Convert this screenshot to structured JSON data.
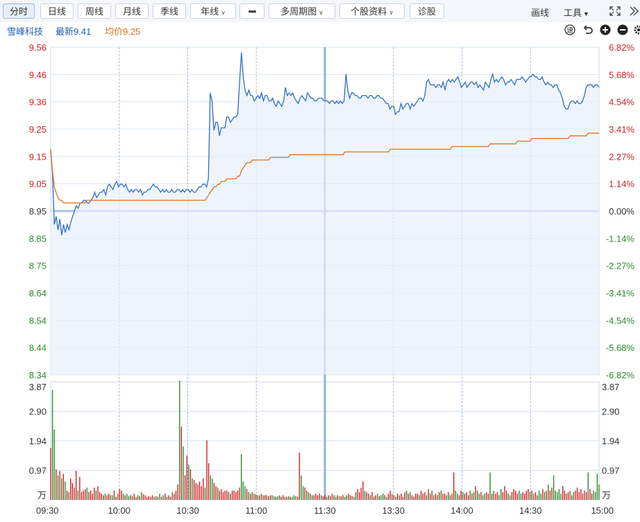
{
  "toolbar": {
    "buttons": [
      {
        "label": "分时",
        "active": true
      },
      {
        "label": "日线"
      },
      {
        "label": "周线"
      },
      {
        "label": "月线"
      },
      {
        "label": "季线"
      },
      {
        "label": "年线",
        "dropdown": true
      },
      {
        "label": "•••"
      },
      {
        "label": "多周期图",
        "dropdown": true
      },
      {
        "label": "个股资料",
        "dropdown": true
      },
      {
        "label": "诊股"
      }
    ],
    "draw_label": "画线",
    "tools_label": "工具",
    "expand_icon": "expand-icon",
    "collapse_icon": "double-chevron-icon"
  },
  "info": {
    "stock_name": "雪峰科技",
    "latest": "最新9.41",
    "avg": "均价9.25",
    "controls": [
      "speed-icon",
      "undo-icon",
      "zoom-in-icon",
      "zoom-out-icon",
      "settings-icon"
    ]
  },
  "colors": {
    "price": "#2f6fc6",
    "avg": "#e0701b",
    "up": "#d02020",
    "down": "#2a8a2a",
    "grid": "#b5cdee",
    "fill": "#e8f0fb"
  },
  "chart_data": {
    "type": "line",
    "price_axis": {
      "ticks": [
        "9.56",
        "9.46",
        "9.36",
        "9.25",
        "9.15",
        "9.05",
        "8.95",
        "8.85",
        "8.75",
        "8.64",
        "8.54",
        "8.44",
        "8.34"
      ],
      "pct_ticks": [
        "6.82%",
        "5.68%",
        "4.54%",
        "3.41%",
        "2.27%",
        "1.14%",
        "0.00%",
        "-1.14%",
        "-2.27%",
        "-3.41%",
        "-4.54%",
        "-5.68%",
        "-6.82%"
      ],
      "ylim": [
        8.34,
        9.56
      ],
      "prev_close": 8.95
    },
    "volume_axis": {
      "ticks": [
        "3.87",
        "2.90",
        "1.94",
        "0.97",
        "万"
      ],
      "ylim": [
        0,
        3.87
      ]
    },
    "x_ticks": [
      "09:30",
      "10:00",
      "10:30",
      "11:00",
      "11:30",
      "13:30",
      "14:00",
      "14:30",
      "15:00"
    ],
    "price": [
      9.18,
      9.09,
      8.9,
      8.93,
      8.88,
      8.92,
      8.86,
      8.9,
      8.87,
      8.9,
      8.88,
      8.91,
      8.93,
      8.95,
      8.97,
      8.96,
      8.98,
      8.98,
      8.99,
      8.99,
      8.98,
      8.98,
      8.99,
      9.0,
      9.02,
      9.0,
      9.01,
      9.02,
      9.02,
      9.03,
      9.01,
      9.04,
      9.05,
      9.04,
      9.03,
      9.05,
      9.06,
      9.04,
      9.05,
      9.05,
      9.04,
      9.05,
      9.03,
      9.02,
      9.03,
      9.02,
      9.03,
      9.03,
      9.02,
      9.03,
      9.01,
      9.02,
      9.02,
      9.03,
      9.03,
      9.04,
      9.05,
      9.04,
      9.04,
      9.03,
      9.02,
      9.03,
      9.02,
      9.03,
      9.02,
      9.02,
      9.03,
      9.02,
      9.02,
      9.03,
      9.03,
      9.02,
      9.03,
      9.02,
      9.03,
      9.03,
      9.02,
      9.03,
      9.02,
      9.02,
      9.03,
      9.04,
      9.04,
      9.05,
      9.05,
      9.04,
      9.07,
      9.39,
      9.36,
      9.25,
      9.28,
      9.28,
      9.23,
      9.26,
      9.26,
      9.26,
      9.3,
      9.3,
      9.28,
      9.29,
      9.3,
      9.3,
      9.31,
      9.43,
      9.54,
      9.45,
      9.4,
      9.38,
      9.4,
      9.38,
      9.38,
      9.36,
      9.37,
      9.38,
      9.37,
      9.39,
      9.36,
      9.38,
      9.38,
      9.36,
      9.36,
      9.37,
      9.35,
      9.34,
      9.36,
      9.35,
      9.34,
      9.36,
      9.41,
      9.38,
      9.39,
      9.38,
      9.39,
      9.37,
      9.36,
      9.35,
      9.37,
      9.38,
      9.37,
      9.36,
      9.39,
      9.38,
      9.37,
      9.37,
      9.36,
      9.36,
      9.37,
      9.37,
      9.37,
      9.36,
      9.36,
      9.36,
      9.35,
      9.36,
      9.36,
      9.35,
      9.36,
      9.35,
      9.36,
      9.35,
      9.36,
      9.46,
      9.4,
      9.37,
      9.39,
      9.39,
      9.38,
      9.38,
      9.37,
      9.37,
      9.38,
      9.38,
      9.38,
      9.37,
      9.38,
      9.38,
      9.37,
      9.37,
      9.38,
      9.38,
      9.37,
      9.37,
      9.36,
      9.35,
      9.35,
      9.33,
      9.34,
      9.34,
      9.31,
      9.32,
      9.32,
      9.35,
      9.33,
      9.34,
      9.35,
      9.35,
      9.33,
      9.35,
      9.34,
      9.35,
      9.36,
      9.37,
      9.37,
      9.36,
      9.38,
      9.43,
      9.44,
      9.42,
      9.42,
      9.42,
      9.41,
      9.42,
      9.42,
      9.41,
      9.43,
      9.4,
      9.43,
      9.44,
      9.43,
      9.44,
      9.43,
      9.44,
      9.45,
      9.43,
      9.41,
      9.42,
      9.43,
      9.41,
      9.42,
      9.43,
      9.43,
      9.42,
      9.43,
      9.41,
      9.42,
      9.41,
      9.4,
      9.43,
      9.42,
      9.41,
      9.44,
      9.46,
      9.43,
      9.44,
      9.43,
      9.44,
      9.45,
      9.44,
      9.42,
      9.43,
      9.43,
      9.44,
      9.43,
      9.42,
      9.44,
      9.44,
      9.44,
      9.45,
      9.44,
      9.43,
      9.44,
      9.45,
      9.45,
      9.46,
      9.45,
      9.45,
      9.44,
      9.44,
      9.45,
      9.43,
      9.42,
      9.43,
      9.42,
      9.42,
      9.41,
      9.42,
      9.42,
      9.4,
      9.39,
      9.37,
      9.34,
      9.33,
      9.33,
      9.35,
      9.36,
      9.36,
      9.35,
      9.36,
      9.35,
      9.35,
      9.36,
      9.38,
      9.41,
      9.42,
      9.42,
      9.42,
      9.41,
      9.42,
      9.42,
      9.41
    ],
    "avg_price": [
      9.18,
      9.1,
      9.04,
      9.02,
      9.0,
      8.99,
      8.99,
      8.98,
      8.98,
      8.98,
      8.98,
      8.98,
      8.98,
      8.98,
      8.98,
      8.98,
      8.98,
      8.98,
      8.98,
      8.98,
      8.99,
      8.99,
      8.99,
      8.99,
      8.99,
      8.99,
      8.99,
      8.99,
      8.99,
      8.99,
      8.99,
      8.99,
      8.99,
      8.99,
      8.99,
      8.99,
      8.99,
      8.99,
      8.99,
      8.99,
      8.99,
      8.99,
      8.99,
      8.99,
      8.99,
      8.99,
      8.99,
      8.99,
      8.99,
      8.99,
      8.99,
      8.99,
      8.99,
      8.99,
      8.99,
      8.99,
      8.99,
      8.99,
      8.99,
      8.99,
      8.99,
      8.99,
      8.99,
      8.99,
      8.99,
      8.99,
      8.99,
      8.99,
      8.99,
      8.99,
      8.99,
      8.99,
      8.99,
      8.99,
      8.99,
      8.99,
      8.99,
      8.99,
      8.99,
      8.99,
      8.99,
      8.99,
      8.99,
      8.99,
      8.99,
      8.99,
      9.0,
      9.01,
      9.02,
      9.03,
      9.04,
      9.04,
      9.05,
      9.05,
      9.06,
      9.06,
      9.06,
      9.07,
      9.07,
      9.07,
      9.07,
      9.07,
      9.07,
      9.08,
      9.08,
      9.1,
      9.11,
      9.12,
      9.13,
      9.13,
      9.13,
      9.14,
      9.14,
      9.14,
      9.14,
      9.14,
      9.14,
      9.14,
      9.14,
      9.14,
      9.14,
      9.15,
      9.15,
      9.15,
      9.15,
      9.15,
      9.15,
      9.15,
      9.15,
      9.15,
      9.15,
      9.15,
      9.16,
      9.16,
      9.16,
      9.16,
      9.16,
      9.16,
      9.16,
      9.16,
      9.16,
      9.16,
      9.16,
      9.16,
      9.16,
      9.16,
      9.16,
      9.16,
      9.16,
      9.16,
      9.16,
      9.16,
      9.16,
      9.16,
      9.16,
      9.16,
      9.16,
      9.16,
      9.16,
      9.16,
      9.16,
      9.16,
      9.17,
      9.17,
      9.17,
      9.17,
      9.17,
      9.17,
      9.17,
      9.17,
      9.17,
      9.17,
      9.17,
      9.17,
      9.17,
      9.17,
      9.17,
      9.17,
      9.17,
      9.17,
      9.17,
      9.17,
      9.17,
      9.17,
      9.17,
      9.17,
      9.17,
      9.18,
      9.18,
      9.18,
      9.18,
      9.18,
      9.18,
      9.18,
      9.18,
      9.18,
      9.18,
      9.18,
      9.18,
      9.18,
      9.18,
      9.18,
      9.18,
      9.18,
      9.18,
      9.18,
      9.18,
      9.18,
      9.18,
      9.18,
      9.18,
      9.18,
      9.18,
      9.18,
      9.18,
      9.18,
      9.18,
      9.18,
      9.18,
      9.18,
      9.18,
      9.19,
      9.19,
      9.19,
      9.19,
      9.19,
      9.19,
      9.19,
      9.19,
      9.19,
      9.19,
      9.19,
      9.19,
      9.19,
      9.19,
      9.19,
      9.19,
      9.19,
      9.19,
      9.19,
      9.19,
      9.19,
      9.2,
      9.2,
      9.2,
      9.2,
      9.2,
      9.2,
      9.2,
      9.2,
      9.2,
      9.2,
      9.2,
      9.2,
      9.2,
      9.2,
      9.2,
      9.21,
      9.21,
      9.21,
      9.21,
      9.21,
      9.21,
      9.21,
      9.21,
      9.22,
      9.22,
      9.22,
      9.22,
      9.22,
      9.22,
      9.22,
      9.22,
      9.22,
      9.22,
      9.22,
      9.22,
      9.22,
      9.22,
      9.22,
      9.22,
      9.22,
      9.22,
      9.22,
      9.22,
      9.22,
      9.23,
      9.23,
      9.23,
      9.23,
      9.23,
      9.23,
      9.23,
      9.23,
      9.23,
      9.23,
      9.24,
      9.24,
      9.24,
      9.24,
      9.24,
      9.24,
      9.24
    ],
    "volume": [
      1.7,
      3.6,
      2.3,
      1.0,
      0.8,
      0.95,
      0.7,
      0.85,
      0.6,
      0.3,
      0.25,
      0.7,
      0.55,
      0.4,
      0.95,
      0.3,
      0.75,
      0.25,
      0.3,
      0.35,
      0.4,
      0.25,
      0.3,
      0.2,
      0.4,
      0.3,
      0.45,
      0.25,
      0.2,
      0.15,
      0.2,
      0.15,
      0.2,
      0.15,
      0.15,
      0.3,
      0.1,
      0.2,
      0.35,
      0.3,
      0.2,
      0.15,
      0.2,
      0.12,
      0.15,
      0.12,
      0.2,
      0.1,
      0.15,
      0.12,
      0.25,
      0.18,
      0.15,
      0.1,
      0.12,
      0.1,
      0.15,
      0.1,
      0.12,
      0.1,
      0.2,
      0.1,
      0.15,
      0.2,
      0.1,
      0.15,
      0.1,
      0.25,
      0.2,
      0.3,
      0.5,
      3.9,
      2.4,
      1.75,
      0.8,
      1.45,
      1.15,
      1.0,
      0.7,
      0.65,
      0.55,
      0.5,
      0.6,
      0.45,
      0.7,
      0.4,
      1.95,
      1.2,
      0.8,
      0.7,
      0.55,
      0.45,
      0.4,
      0.3,
      0.35,
      0.25,
      0.3,
      0.3,
      0.25,
      0.2,
      0.3,
      0.3,
      0.25,
      0.3,
      0.4,
      1.5,
      0.6,
      0.45,
      0.35,
      0.25,
      0.2,
      0.25,
      0.2,
      0.18,
      0.15,
      0.15,
      0.2,
      0.15,
      0.15,
      0.15,
      0.12,
      0.15,
      0.15,
      0.12,
      0.1,
      0.12,
      0.15,
      0.1,
      0.15,
      0.1,
      0.1,
      0.12,
      0.1,
      0.1,
      0.15,
      0.12,
      0.1,
      1.55,
      0.8,
      0.45,
      0.4,
      0.3,
      0.25,
      0.2,
      0.15,
      0.15,
      0.2,
      0.15,
      0.2,
      0.15,
      0.12,
      0.15,
      0.1,
      0.15,
      0.12,
      0.2,
      0.15,
      0.1,
      0.15,
      0.12,
      0.12,
      0.15,
      0.1,
      0.15,
      0.2,
      0.15,
      0.12,
      0.1,
      0.25,
      0.35,
      0.25,
      0.4,
      0.6,
      0.3,
      0.25,
      0.2,
      0.15,
      0.25,
      0.1,
      0.15,
      0.2,
      0.12,
      0.15,
      0.2,
      0.15,
      0.1,
      0.2,
      0.3,
      0.2,
      0.15,
      0.1,
      0.2,
      0.15,
      0.2,
      0.1,
      0.25,
      0.3,
      0.2,
      0.25,
      0.15,
      0.1,
      0.2,
      0.2,
      0.15,
      0.3,
      0.2,
      0.25,
      0.15,
      0.35,
      0.2,
      0.3,
      0.15,
      0.2,
      0.15,
      0.25,
      0.3,
      0.2,
      0.2,
      0.15,
      0.25,
      0.15,
      0.2,
      0.9,
      0.3,
      0.2,
      0.15,
      0.3,
      0.25,
      0.2,
      0.25,
      0.15,
      0.3,
      0.2,
      0.25,
      0.45,
      0.3,
      0.2,
      0.25,
      0.15,
      0.2,
      0.25,
      0.2,
      0.9,
      0.2,
      0.3,
      0.2,
      0.25,
      0.15,
      0.35,
      0.25,
      0.45,
      0.3,
      0.2,
      0.15,
      0.25,
      0.35,
      0.3,
      0.2,
      0.3,
      0.2,
      0.25,
      0.2,
      0.3,
      0.35,
      0.25,
      0.3,
      0.2,
      0.25,
      0.15,
      0.3,
      0.2,
      0.35,
      0.25,
      0.3,
      0.5,
      0.3,
      0.4,
      0.8,
      0.3,
      0.25,
      0.35,
      0.2,
      0.45,
      0.3,
      0.2,
      0.25,
      0.3,
      0.15,
      0.25,
      0.3,
      0.4,
      0.25,
      0.35,
      0.2,
      0.3,
      0.25,
      0.9,
      0.35,
      0.2,
      0.3,
      0.25,
      0.85,
      0.5
    ]
  }
}
